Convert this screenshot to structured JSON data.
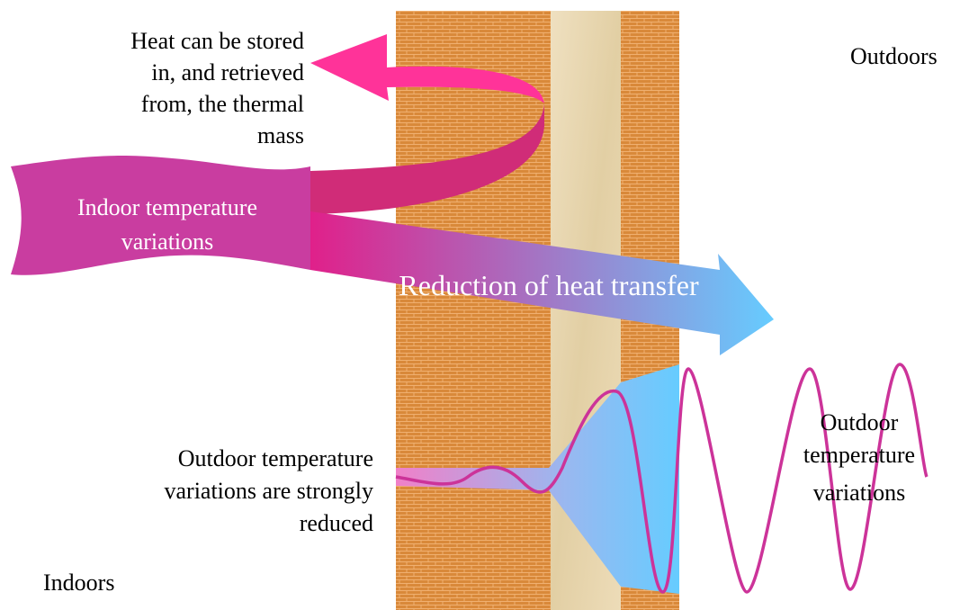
{
  "labels": {
    "storage": [
      "Heat can be stored",
      "in, and retrieved",
      "from, the thermal",
      "mass"
    ],
    "outdoors": "Outdoors",
    "indoor_variations": [
      "Indoor temperature",
      "variations"
    ],
    "reduction": "Reduction of heat transfer",
    "reduced": [
      "Outdoor temperature",
      "variations are strongly",
      "reduced"
    ],
    "outdoor_variations": [
      "Outdoor",
      "temperature",
      "variations"
    ],
    "indoors": "Indoors"
  }
}
